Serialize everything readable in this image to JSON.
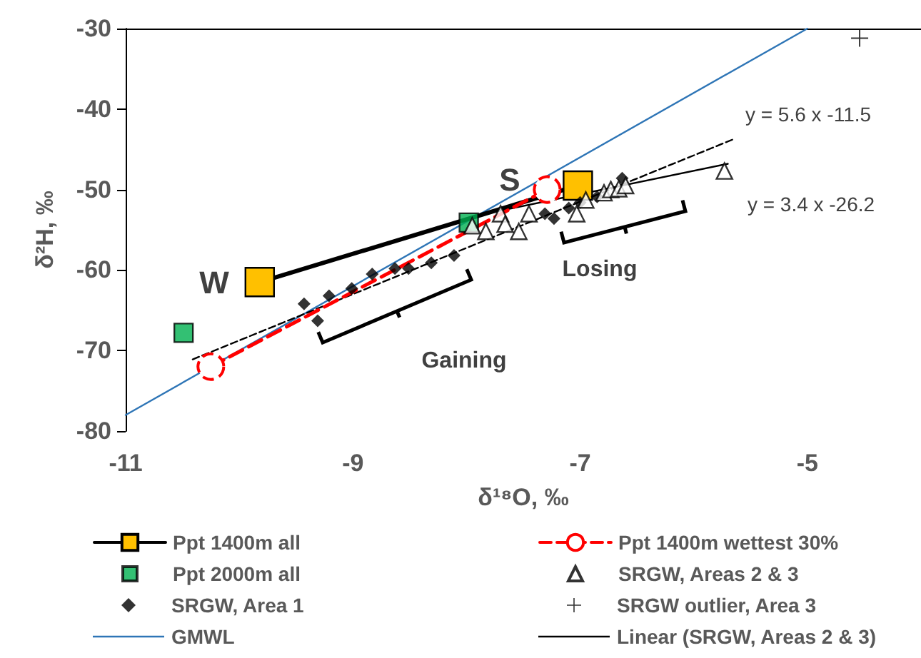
{
  "chart_data": {
    "type": "scatter",
    "xlabel": "δ¹⁸O, ‰",
    "ylabel": "δ²H, ‰",
    "xlim": [
      -11,
      -4
    ],
    "xticks": [
      -11,
      -9,
      -7,
      -5
    ],
    "ylim": [
      -80,
      -30
    ],
    "yticks": [
      -80,
      -70,
      -60,
      -50,
      -40,
      -30
    ],
    "grid": false,
    "legend": "bottom",
    "series": [
      {
        "name": "Ppt 1400m all",
        "type": "line",
        "marker": "square",
        "line_style": "solid",
        "color": "#ffc000",
        "x": [
          -9.82,
          -7.02
        ],
        "values": [
          -61.5,
          -49.5
        ]
      },
      {
        "name": "Ppt 1400m wettest 30%",
        "type": "line",
        "marker": "circle",
        "line_style": "dashed",
        "color": "#ff0000",
        "x": [
          -10.25,
          -7.29
        ],
        "values": [
          -72,
          -50
        ]
      },
      {
        "name": "Ppt 2000m all",
        "type": "scatter",
        "marker": "square",
        "color": "#00b050",
        "x": [
          -10.49,
          -7.98
        ],
        "values": [
          -67.8,
          -54.1
        ]
      },
      {
        "name": "SRGW, Areas 2 & 3",
        "type": "scatter",
        "marker": "triangle",
        "color": "#000000",
        "x": [
          -7.95,
          -7.83,
          -7.7,
          -7.66,
          -7.54,
          -7.45,
          -7.03,
          -6.95,
          -6.79,
          -6.73,
          -6.66,
          -6.6,
          -5.73
        ],
        "values": [
          -54.5,
          -55.2,
          -53,
          -54.3,
          -55.2,
          -53,
          -53,
          -51.3,
          -50.4,
          -50,
          -49.9,
          -49.5,
          -47.7
        ]
      },
      {
        "name": "SRGW, Area 1",
        "type": "scatter",
        "marker": "diamond",
        "color": "#000000",
        "x": [
          -9.43,
          -9.31,
          -9.21,
          -9.01,
          -8.83,
          -8.63,
          -8.51,
          -8.31,
          -8.11,
          -7.31,
          -7.23,
          -7.1,
          -7,
          -6.85,
          -6.63
        ],
        "values": [
          -64.2,
          -66.3,
          -63.2,
          -62.3,
          -60.5,
          -59.8,
          -59.8,
          -59.1,
          -58.2,
          -53,
          -53.6,
          -52.3,
          -51.6,
          -50.9,
          -48.6
        ]
      },
      {
        "name": "SRGW outlier, Area 3",
        "type": "scatter",
        "marker": "cross",
        "color": "#000000",
        "x": [
          -4.54
        ],
        "values": [
          -31.2
        ]
      },
      {
        "name": "GMWL",
        "type": "line",
        "marker": "none",
        "line_style": "solid",
        "color": "#2e75b6",
        "x": [
          -11,
          -5
        ],
        "values": [
          -78,
          -30
        ]
      },
      {
        "name": "Linear (SRGW, Areas 2 & 3)",
        "type": "line",
        "marker": "none",
        "line_style": "solid",
        "color": "#000000",
        "x": [
          -7.9,
          -5.7
        ],
        "values": [
          -53.2,
          -46.8
        ]
      },
      {
        "type": "line",
        "marker": "none",
        "line_style": "dashed",
        "color": "#000000",
        "x": [
          -10.41,
          -5.66
        ],
        "values": [
          -71.1,
          -43.8
        ]
      }
    ],
    "annotations": [
      "W",
      "S",
      "y = 5.6 x -11.5",
      "y = 3.4 x -26.2",
      "Gaining",
      "Losing"
    ]
  }
}
